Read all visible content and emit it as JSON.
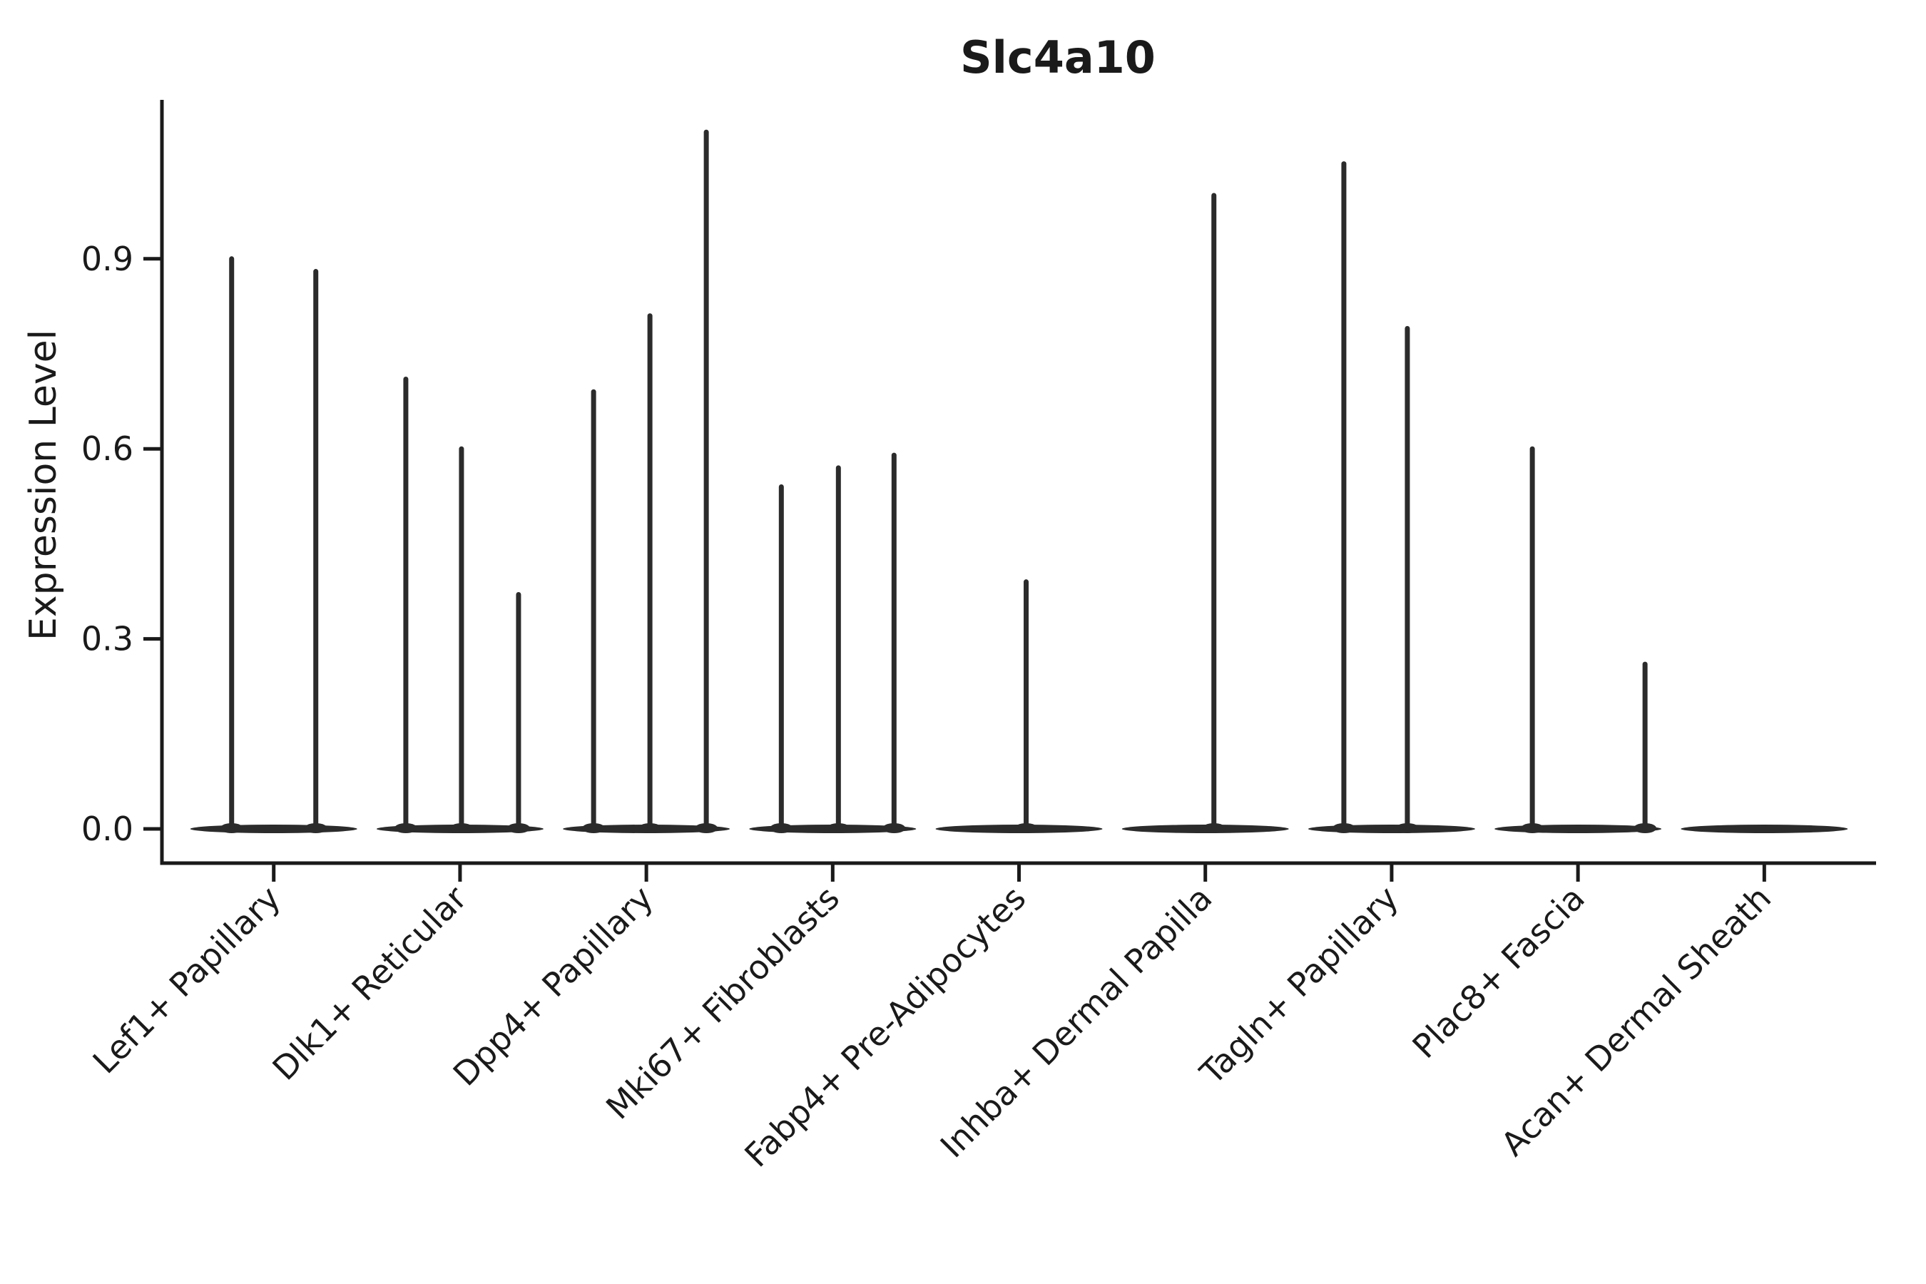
{
  "title": "Slc4a10",
  "ylabel": "Expression Level",
  "colors": {
    "axis": "#1a1a1a",
    "text": "#1a1a1a",
    "violin": "#2b2b2b"
  },
  "chart_data": {
    "type": "violin",
    "title": "Slc4a10",
    "xlabel": "",
    "ylabel": "Expression Level",
    "yticks": [
      0.0,
      0.3,
      0.6,
      0.9
    ],
    "ylim": [
      -0.05,
      1.15
    ],
    "grid": false,
    "legend": "none",
    "x_tick_angle": 45,
    "categories": [
      "Lef1+ Papillary",
      "Dlk1+ Reticular",
      "Dpp4+ Papillary",
      "Mki67+ Fibroblasts",
      "Fabp4+ Pre-Adipocytes",
      "Inhba+ Dermal Papilla",
      "Tagln+ Papillary",
      "Plac8+ Fascia",
      "Acan+ Dermal Sheath"
    ],
    "description": "Seurat-style violin plot of Slc4a10 expression; each violin is a flat density at 0 with thin spikes reaching the expression level of rare expressing cells.",
    "series": [
      {
        "name": "Lef1+ Papillary",
        "baseline": 0.0,
        "spikes": [
          {
            "value": 0.9,
            "offset": -59
          },
          {
            "value": 0.88,
            "offset": 59
          }
        ]
      },
      {
        "name": "Dlk1+ Reticular",
        "baseline": 0.0,
        "spikes": [
          {
            "value": 0.71,
            "offset": -76
          },
          {
            "value": 0.6,
            "offset": 2
          },
          {
            "value": 0.37,
            "offset": 82
          }
        ]
      },
      {
        "name": "Dpp4+ Papillary",
        "baseline": 0.0,
        "spikes": [
          {
            "value": 0.69,
            "offset": -74
          },
          {
            "value": 0.81,
            "offset": 5
          },
          {
            "value": 1.1,
            "offset": 84
          }
        ]
      },
      {
        "name": "Mki67+ Fibroblasts",
        "baseline": 0.0,
        "spikes": [
          {
            "value": 0.54,
            "offset": -72
          },
          {
            "value": 0.57,
            "offset": 8
          },
          {
            "value": 0.59,
            "offset": 86
          }
        ]
      },
      {
        "name": "Fabp4+ Pre-Adipocytes",
        "baseline": 0.0,
        "spikes": [
          {
            "value": 0.39,
            "offset": 10
          }
        ]
      },
      {
        "name": "Inhba+ Dermal Papilla",
        "baseline": 0.0,
        "spikes": [
          {
            "value": 1.0,
            "offset": 12
          }
        ]
      },
      {
        "name": "Tagln+ Papillary",
        "baseline": 0.0,
        "spikes": [
          {
            "value": 1.05,
            "offset": -67
          },
          {
            "value": 0.79,
            "offset": 22
          }
        ]
      },
      {
        "name": "Plac8+ Fascia",
        "baseline": 0.0,
        "spikes": [
          {
            "value": 0.6,
            "offset": -64
          },
          {
            "value": 0.26,
            "offset": 94
          }
        ]
      },
      {
        "name": "Acan+ Dermal Sheath",
        "baseline": 0.0,
        "spikes": []
      }
    ]
  }
}
